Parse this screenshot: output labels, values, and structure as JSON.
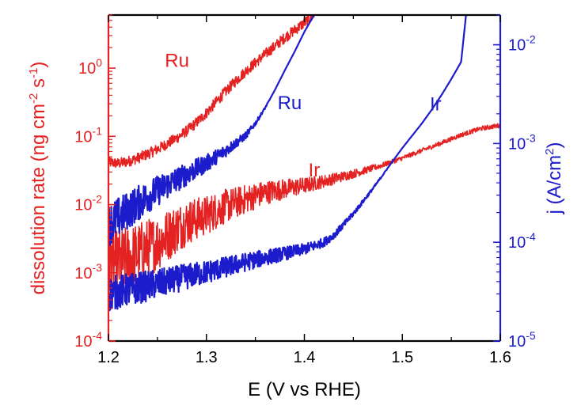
{
  "chart_data": {
    "type": "line",
    "title": "",
    "xlabel": "E (V vs RHE)",
    "ylabel_left": {
      "text": "dissolution rate (ng cm",
      "sup1": "-2",
      "mid": " s",
      "sup2": "-1",
      "end": ")"
    },
    "ylabel_right": {
      "text": "j (A/cm",
      "sup": "2",
      "end": ")"
    },
    "xlim": [
      1.2,
      1.6
    ],
    "x_ticks": [
      {
        "value": 1.2,
        "label": "1.2"
      },
      {
        "value": 1.3,
        "label": "1.3"
      },
      {
        "value": 1.4,
        "label": "1.4"
      },
      {
        "value": 1.5,
        "label": "1.5"
      },
      {
        "value": 1.6,
        "label": "1.6"
      }
    ],
    "y_left_scale": "log",
    "y_left_lim": [
      0.0001,
      6
    ],
    "y_left_ticks": [
      {
        "value": 0.0001,
        "base": "10",
        "exp": "-4"
      },
      {
        "value": 0.001,
        "base": "10",
        "exp": "-3"
      },
      {
        "value": 0.01,
        "base": "10",
        "exp": "-2"
      },
      {
        "value": 0.1,
        "base": "10",
        "exp": "-1"
      },
      {
        "value": 1,
        "base": "10",
        "exp": "0"
      }
    ],
    "y_right_scale": "log",
    "y_right_lim": [
      1e-05,
      0.02
    ],
    "y_right_ticks": [
      {
        "value": 1e-05,
        "base": "10",
        "exp": "-5"
      },
      {
        "value": 0.0001,
        "base": "10",
        "exp": "-4"
      },
      {
        "value": 0.001,
        "base": "10",
        "exp": "-3"
      },
      {
        "value": 0.01,
        "base": "10",
        "exp": "-2"
      }
    ],
    "grid": false,
    "colors": {
      "left_axis": "#e52222",
      "right_axis": "#1c1ccc"
    },
    "series": [
      {
        "name": "Ru",
        "axis": "left",
        "color": "#e52222",
        "noise": 0.08,
        "x": [
          1.2,
          1.21,
          1.22,
          1.23,
          1.24,
          1.25,
          1.26,
          1.27,
          1.28,
          1.29,
          1.3,
          1.31,
          1.32,
          1.33,
          1.34,
          1.35,
          1.36,
          1.37,
          1.38,
          1.39,
          1.4,
          1.41
        ],
        "y": [
          0.042,
          0.04,
          0.043,
          0.048,
          0.055,
          0.065,
          0.078,
          0.095,
          0.12,
          0.16,
          0.22,
          0.32,
          0.46,
          0.65,
          0.9,
          1.2,
          1.6,
          2.1,
          2.8,
          3.6,
          4.6,
          6.0
        ]
      },
      {
        "name": "Ir",
        "axis": "left",
        "color": "#e52222",
        "noise": 0.55,
        "x": [
          1.2,
          1.21,
          1.22,
          1.23,
          1.24,
          1.25,
          1.26,
          1.27,
          1.28,
          1.3,
          1.32,
          1.34,
          1.36,
          1.38,
          1.4,
          1.42,
          1.44,
          1.46,
          1.48,
          1.5,
          1.52,
          1.54,
          1.56,
          1.58,
          1.6
        ],
        "y": [
          0.0015,
          0.0013,
          0.0016,
          0.0019,
          0.0023,
          0.0028,
          0.0035,
          0.0045,
          0.0055,
          0.007,
          0.0095,
          0.012,
          0.015,
          0.017,
          0.019,
          0.022,
          0.026,
          0.031,
          0.038,
          0.048,
          0.062,
          0.08,
          0.105,
          0.13,
          0.145
        ]
      },
      {
        "name": "Ru",
        "axis": "right",
        "color": "#1c1ccc",
        "noise": 0.22,
        "x": [
          1.2,
          1.22,
          1.24,
          1.26,
          1.28,
          1.3,
          1.32,
          1.34,
          1.35,
          1.36,
          1.37,
          1.38,
          1.39,
          1.4,
          1.405,
          1.41
        ],
        "y": [
          0.00015,
          0.00021,
          0.00029,
          0.00038,
          0.00049,
          0.00063,
          0.00085,
          0.0012,
          0.0016,
          0.0023,
          0.0035,
          0.0055,
          0.0085,
          0.0135,
          0.0165,
          0.02
        ]
      },
      {
        "name": "Ir",
        "axis": "right",
        "color": "#1c1ccc",
        "noise": 0.18,
        "x": [
          1.2,
          1.22,
          1.24,
          1.26,
          1.28,
          1.3,
          1.32,
          1.34,
          1.36,
          1.38,
          1.4,
          1.42,
          1.43,
          1.44,
          1.45,
          1.46,
          1.47,
          1.48,
          1.49,
          1.5,
          1.51,
          1.52,
          1.53,
          1.54,
          1.55,
          1.56,
          1.565
        ],
        "y": [
          3e-05,
          3.3e-05,
          3.6e-05,
          4e-05,
          4.5e-05,
          5e-05,
          5.6e-05,
          6.3e-05,
          7e-05,
          7.7e-05,
          8.5e-05,
          0.0001,
          0.000118,
          0.00015,
          0.000195,
          0.00026,
          0.00035,
          0.00048,
          0.00066,
          0.0009,
          0.0012,
          0.0016,
          0.0022,
          0.0031,
          0.0045,
          0.0067,
          0.02
        ]
      }
    ],
    "annotations": [
      {
        "text": "Ru",
        "color": "#e52222",
        "x": 1.27,
        "y_axis": "left",
        "y": 1.05
      },
      {
        "text": "Ru",
        "color": "#1c1ccc",
        "x": 1.385,
        "y_axis": "left",
        "y": 0.25
      },
      {
        "text": "Ir",
        "color": "#e52222",
        "x": 1.41,
        "y_axis": "left",
        "y": 0.026
      },
      {
        "text": "Ir",
        "color": "#1c1ccc",
        "x": 1.534,
        "y_axis": "left",
        "y": 0.24
      }
    ]
  }
}
